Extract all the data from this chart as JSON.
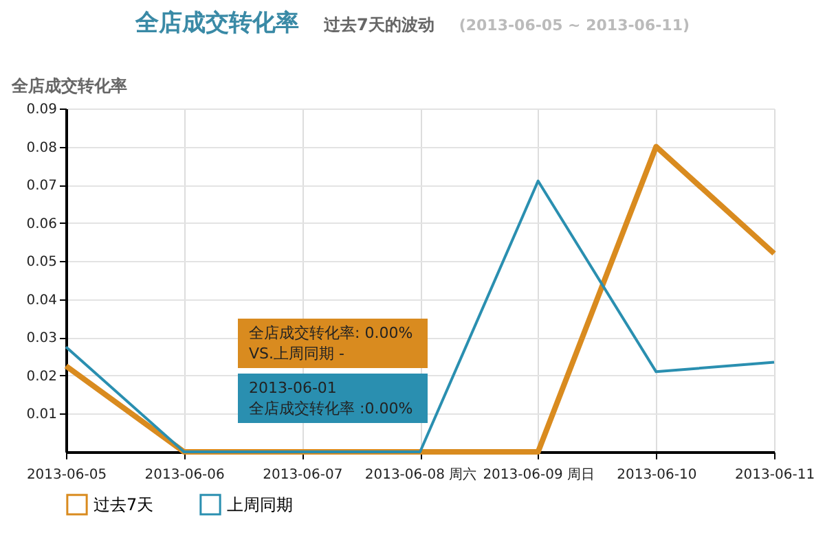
{
  "chart_data": {
    "type": "line",
    "title": "全店成交转化率",
    "subtitle": "过去7天的波动",
    "ylabel": "全店成交转化率",
    "categories": [
      "2013-06-05",
      "2013-06-06",
      "2013-06-07",
      "2013-06-08 周六",
      "2013-06-09 周日",
      "2013-06-10",
      "2013-06-11"
    ],
    "series": [
      {
        "name": "过去7天",
        "color": "#d98b1f",
        "values": [
          0.0225,
          0,
          0,
          0,
          0,
          0.08,
          0.052
        ]
      },
      {
        "name": "上周同期",
        "color": "#2a8fb0",
        "values": [
          0.0275,
          0,
          0,
          0,
          0.071,
          0.021,
          0.0235
        ]
      }
    ],
    "ylim": [
      0,
      0.09
    ],
    "yticks": [
      0.01,
      0.02,
      0.03,
      0.04,
      0.05,
      0.06,
      0.07,
      0.08,
      0.09
    ],
    "grid": true,
    "legend": "bottom left",
    "marker": "none",
    "annotations": [
      "(2013-06-05 ~ 2013-06-11)",
      "全店成交转化率: 0.00%\nVS.上周同期 -",
      "2013-06-01\n全店成交转化率 :0.00%"
    ]
  }
}
